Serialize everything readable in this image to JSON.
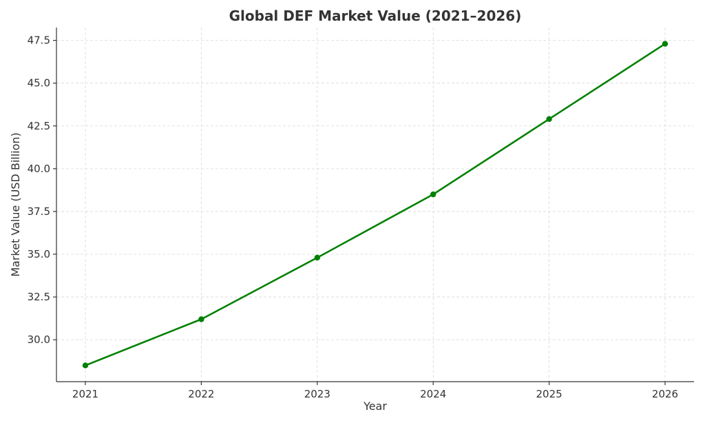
{
  "chart_data": {
    "type": "line",
    "title": "Global DEF Market Value (2021–2026)",
    "xlabel": "Year",
    "ylabel": "Market Value (USD Billion)",
    "x": [
      "2021",
      "2022",
      "2023",
      "2024",
      "2025",
      "2026"
    ],
    "series": [
      {
        "values": [
          28.5,
          31.2,
          34.8,
          38.5,
          42.9,
          47.3
        ]
      }
    ],
    "yticks": [
      "30.0",
      "32.5",
      "35.0",
      "37.5",
      "40.0",
      "42.5",
      "45.0",
      "47.5"
    ],
    "ylim": [
      27.55,
      48.25
    ],
    "grid": true,
    "line_color": "#008000"
  }
}
